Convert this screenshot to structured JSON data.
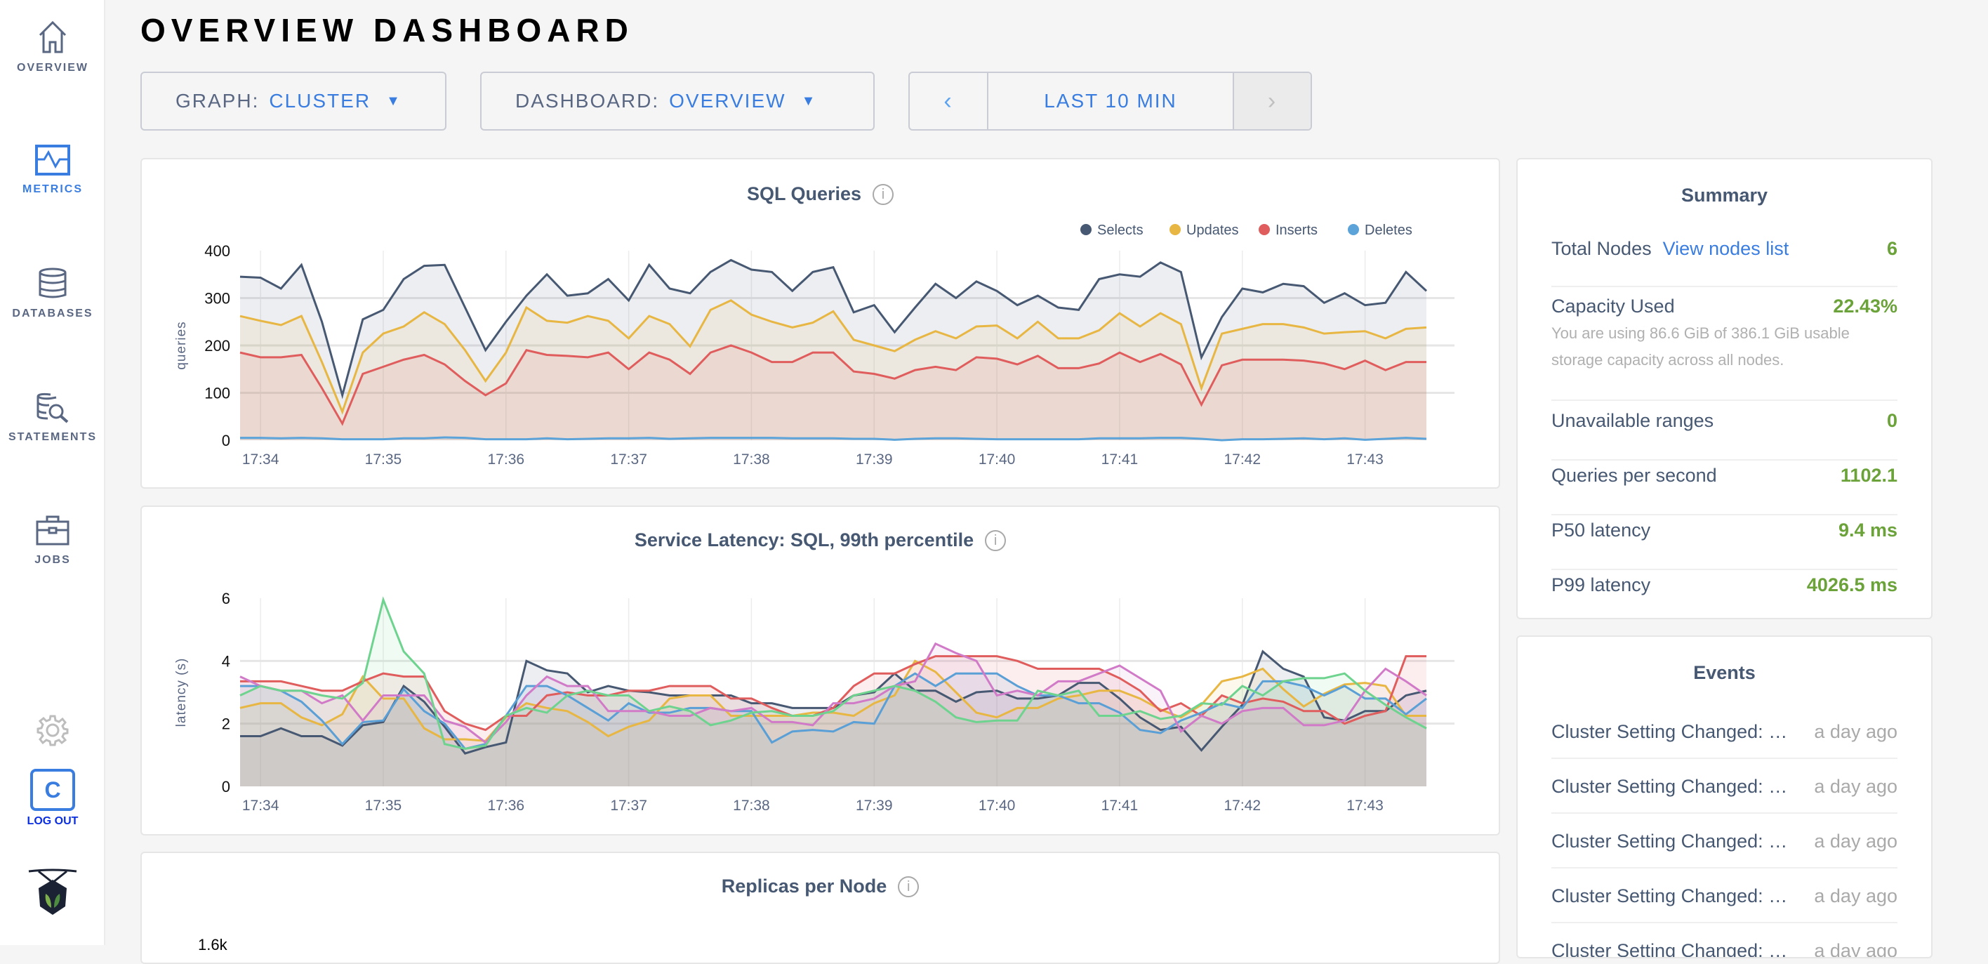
{
  "sidebar": {
    "items": [
      {
        "label": "OVERVIEW",
        "icon": "home-icon"
      },
      {
        "label": "METRICS",
        "icon": "metrics-icon",
        "active": true
      },
      {
        "label": "DATABASES",
        "icon": "database-icon"
      },
      {
        "label": "STATEMENTS",
        "icon": "statements-icon"
      },
      {
        "label": "JOBS",
        "icon": "briefcase-icon"
      }
    ],
    "user_initial": "C",
    "logout_label": "LOG OUT"
  },
  "header": {
    "title": "OVERVIEW DASHBOARD"
  },
  "controls": {
    "graph_key": "GRAPH:",
    "graph_value": "CLUSTER",
    "dashboard_key": "DASHBOARD:",
    "dashboard_value": "OVERVIEW",
    "time_range": "LAST 10 MIN",
    "prev": "‹",
    "next": "›"
  },
  "colors": {
    "accent": "#3a7de1",
    "value_green": "#6ba23a"
  },
  "panels": {
    "sql": {
      "title": "SQL Queries",
      "info": "i"
    },
    "latency": {
      "title": "Service Latency: SQL, 99th percentile",
      "info": "i"
    },
    "replicas": {
      "title": "Replicas per Node",
      "info": "i",
      "y_tick_visible": "1.6k"
    }
  },
  "chart_data": [
    {
      "type": "area",
      "title": "SQL Queries",
      "ylabel": "queries",
      "ylim": [
        0,
        400
      ],
      "yticks": [
        0,
        100,
        200,
        300,
        400
      ],
      "xticks": [
        "17:34",
        "17:35",
        "17:36",
        "17:37",
        "17:38",
        "17:39",
        "17:40",
        "17:41",
        "17:42",
        "17:43"
      ],
      "legend_position": "top-right",
      "grid": true,
      "x": [
        "17:33:50",
        "17:34:00",
        "17:34:10",
        "17:34:20",
        "17:34:30",
        "17:34:40",
        "17:34:50",
        "17:35:00",
        "17:35:10",
        "17:35:20",
        "17:35:30",
        "17:35:40",
        "17:35:50",
        "17:36:00",
        "17:36:10",
        "17:36:20",
        "17:36:30",
        "17:36:40",
        "17:36:50",
        "17:37:00",
        "17:37:10",
        "17:37:20",
        "17:37:30",
        "17:37:40",
        "17:37:50",
        "17:38:00",
        "17:38:10",
        "17:38:20",
        "17:38:30",
        "17:38:40",
        "17:38:50",
        "17:39:00",
        "17:39:10",
        "17:39:20",
        "17:39:30",
        "17:39:40",
        "17:39:50",
        "17:40:00",
        "17:40:10",
        "17:40:20",
        "17:40:30",
        "17:40:40",
        "17:40:50",
        "17:41:00",
        "17:41:10",
        "17:41:20",
        "17:41:30",
        "17:41:40",
        "17:41:50",
        "17:42:00",
        "17:42:10",
        "17:42:20",
        "17:42:30",
        "17:42:40",
        "17:42:50",
        "17:43:00",
        "17:43:10",
        "17:43:20",
        "17:43:30"
      ],
      "series": [
        {
          "name": "Selects",
          "color": "#475872",
          "values": [
            345,
            343,
            320,
            370,
            250,
            95,
            255,
            275,
            340,
            368,
            370,
            280,
            190,
            250,
            305,
            350,
            305,
            310,
            340,
            295,
            370,
            320,
            310,
            355,
            380,
            360,
            355,
            315,
            355,
            365,
            270,
            285,
            228,
            280,
            330,
            300,
            335,
            315,
            285,
            305,
            280,
            275,
            340,
            350,
            345,
            375,
            355,
            175,
            260,
            320,
            312,
            330,
            325,
            290,
            310,
            285,
            290,
            355,
            315
          ]
        },
        {
          "name": "Updates",
          "color": "#e7b643",
          "values": [
            262,
            252,
            243,
            262,
            165,
            60,
            185,
            225,
            240,
            270,
            245,
            190,
            125,
            185,
            280,
            252,
            248,
            262,
            252,
            215,
            262,
            245,
            198,
            275,
            295,
            265,
            250,
            238,
            248,
            272,
            212,
            200,
            188,
            212,
            230,
            215,
            240,
            242,
            215,
            250,
            215,
            215,
            232,
            268,
            240,
            268,
            245,
            110,
            225,
            235,
            245,
            245,
            238,
            225,
            228,
            230,
            215,
            235,
            238
          ]
        },
        {
          "name": "Inserts",
          "color": "#e05d5d",
          "values": [
            185,
            175,
            175,
            180,
            110,
            35,
            140,
            155,
            170,
            180,
            160,
            125,
            95,
            120,
            190,
            180,
            178,
            175,
            185,
            150,
            185,
            170,
            140,
            185,
            200,
            185,
            165,
            165,
            185,
            185,
            145,
            140,
            130,
            148,
            155,
            148,
            175,
            172,
            160,
            178,
            152,
            152,
            162,
            185,
            165,
            182,
            160,
            75,
            158,
            170,
            170,
            170,
            168,
            162,
            150,
            168,
            148,
            165,
            165
          ]
        },
        {
          "name": "Deletes",
          "color": "#5ba3d9",
          "values": [
            5,
            5,
            4,
            5,
            4,
            2,
            2,
            2,
            4,
            4,
            6,
            5,
            2,
            2,
            2,
            4,
            2,
            3,
            4,
            4,
            5,
            3,
            4,
            5,
            5,
            5,
            5,
            4,
            4,
            4,
            3,
            3,
            1,
            3,
            4,
            4,
            3,
            2,
            2,
            2,
            2,
            2,
            4,
            4,
            4,
            5,
            5,
            3,
            0,
            2,
            2,
            3,
            4,
            2,
            4,
            1,
            3,
            5,
            3
          ]
        }
      ]
    },
    {
      "type": "area",
      "title": "Service Latency: SQL, 99th percentile",
      "ylabel": "latency (s)",
      "ylim": [
        0,
        6
      ],
      "yticks": [
        0,
        2,
        4,
        6
      ],
      "xticks": [
        "17:34",
        "17:35",
        "17:36",
        "17:37",
        "17:38",
        "17:39",
        "17:40",
        "17:41",
        "17:42",
        "17:43"
      ],
      "grid": true,
      "series": [
        {
          "color": "#475872",
          "values": [
            1.6,
            1.6,
            1.85,
            1.6,
            1.6,
            1.3,
            1.95,
            2.05,
            3.2,
            2.7,
            1.9,
            1.05,
            1.25,
            1.4,
            4.0,
            3.7,
            3.6,
            3.0,
            3.2,
            3.05,
            3.0,
            2.9,
            2.9,
            2.9,
            2.9,
            2.65,
            2.65,
            2.5,
            2.5,
            2.5,
            2.9,
            3.0,
            3.6,
            3.05,
            3.05,
            2.7,
            3.0,
            3.05,
            2.8,
            2.8,
            2.9,
            3.3,
            3.3,
            2.8,
            2.2,
            1.8,
            1.9,
            1.15,
            1.9,
            2.6,
            4.3,
            3.75,
            3.5,
            2.2,
            2.1,
            2.4,
            2.4,
            2.9,
            3.05
          ]
        },
        {
          "color": "#e7b643",
          "values": [
            2.5,
            2.65,
            2.65,
            2.2,
            1.95,
            2.3,
            3.5,
            2.8,
            2.8,
            1.85,
            1.5,
            1.5,
            1.45,
            2.2,
            2.65,
            2.5,
            2.4,
            2.05,
            1.6,
            1.9,
            2.1,
            2.8,
            2.9,
            2.9,
            2.25,
            2.25,
            2.25,
            2.25,
            2.35,
            2.35,
            2.25,
            2.65,
            2.9,
            4.0,
            3.65,
            3.0,
            2.35,
            2.2,
            2.5,
            2.5,
            2.8,
            2.9,
            3.05,
            3.05,
            2.8,
            2.45,
            2.2,
            2.6,
            3.35,
            3.5,
            3.75,
            3.1,
            2.55,
            2.95,
            3.25,
            3.3,
            3.2,
            2.25,
            2.25
          ]
        },
        {
          "color": "#e05d5d",
          "values": [
            3.35,
            3.35,
            3.35,
            3.2,
            3.05,
            3.05,
            3.35,
            3.6,
            3.5,
            3.5,
            2.4,
            2.0,
            1.8,
            2.25,
            2.25,
            2.9,
            3.0,
            2.9,
            2.9,
            3.05,
            3.05,
            3.2,
            3.2,
            3.2,
            2.8,
            2.8,
            2.5,
            2.25,
            2.25,
            2.5,
            3.2,
            3.6,
            3.6,
            3.9,
            4.15,
            4.15,
            4.15,
            4.15,
            4.0,
            3.75,
            3.75,
            3.75,
            3.75,
            3.45,
            3.05,
            2.4,
            2.65,
            2.25,
            2.9,
            2.65,
            2.8,
            2.7,
            2.4,
            2.4,
            2.0,
            2.25,
            2.4,
            4.15,
            4.15
          ]
        },
        {
          "color": "#5a9fd6",
          "values": [
            3.2,
            3.2,
            3.05,
            2.7,
            2.1,
            1.35,
            2.05,
            2.1,
            3.1,
            2.4,
            2.0,
            1.2,
            1.35,
            2.25,
            3.2,
            3.2,
            2.9,
            2.5,
            2.1,
            2.65,
            2.35,
            2.35,
            2.5,
            2.5,
            2.4,
            2.4,
            1.4,
            1.75,
            1.8,
            1.75,
            2.05,
            2.0,
            3.2,
            3.6,
            3.2,
            3.6,
            3.6,
            3.6,
            3.2,
            2.9,
            2.9,
            2.65,
            2.65,
            2.35,
            1.8,
            1.7,
            2.1,
            2.35,
            2.65,
            2.5,
            3.35,
            3.35,
            3.2,
            2.9,
            3.2,
            2.8,
            2.8,
            2.3,
            2.8
          ]
        },
        {
          "color": "#d17bc8",
          "values": [
            3.5,
            3.2,
            3.05,
            3.05,
            2.65,
            2.9,
            2.1,
            2.9,
            2.9,
            2.9,
            2.1,
            1.9,
            1.4,
            2.05,
            2.9,
            3.5,
            3.2,
            3.2,
            2.4,
            2.4,
            2.4,
            2.25,
            2.25,
            2.5,
            2.4,
            2.5,
            2.05,
            2.05,
            1.95,
            2.65,
            2.65,
            2.8,
            3.2,
            3.35,
            4.55,
            4.25,
            4.0,
            2.9,
            3.05,
            2.9,
            3.35,
            3.35,
            3.6,
            3.85,
            3.45,
            3.05,
            1.75,
            2.25,
            2.0,
            2.4,
            2.5,
            2.5,
            1.95,
            1.95,
            2.1,
            3.05,
            3.75,
            3.35,
            2.9
          ]
        },
        {
          "color": "#6ed38e",
          "values": [
            2.9,
            3.2,
            3.05,
            3.05,
            2.9,
            2.8,
            3.3,
            5.95,
            4.3,
            3.6,
            1.35,
            1.2,
            1.3,
            2.25,
            2.5,
            2.35,
            2.9,
            3.05,
            2.9,
            2.9,
            2.4,
            2.55,
            2.4,
            1.95,
            2.1,
            2.35,
            2.4,
            2.25,
            2.25,
            2.4,
            2.9,
            3.05,
            3.2,
            3.05,
            2.7,
            2.2,
            2.05,
            2.1,
            2.1,
            3.05,
            2.9,
            3.05,
            2.25,
            2.25,
            2.4,
            2.15,
            2.25,
            2.65,
            2.6,
            3.2,
            2.9,
            3.35,
            3.45,
            3.45,
            3.6,
            3.05,
            2.6,
            2.2,
            1.85
          ]
        }
      ]
    }
  ],
  "summary": {
    "title": "Summary",
    "rows": [
      {
        "label": "Total Nodes",
        "link": "View nodes list",
        "value": "6"
      },
      {
        "label": "Capacity Used",
        "value": "22.43%",
        "note": "You are using 86.6 GiB of 386.1 GiB usable storage capacity across all nodes."
      },
      {
        "label": "Unavailable ranges",
        "value": "0"
      },
      {
        "label": "Queries per second",
        "value": "1102.1"
      },
      {
        "label": "P50 latency",
        "value": "9.4 ms"
      },
      {
        "label": "P99 latency",
        "value": "4026.5 ms"
      }
    ]
  },
  "events": {
    "title": "Events",
    "items": [
      {
        "text": "Cluster Setting Changed: User root set cluster setting",
        "time": "a day ago"
      },
      {
        "text": "Cluster Setting Changed: User root set cluster setting",
        "time": "a day ago"
      },
      {
        "text": "Cluster Setting Changed: User root set cluster setting",
        "time": "a day ago"
      },
      {
        "text": "Cluster Setting Changed: User root set cluster setting",
        "time": "a day ago"
      },
      {
        "text": "Cluster Setting Changed: User root set cluster setting",
        "time": "a day ago"
      }
    ]
  }
}
